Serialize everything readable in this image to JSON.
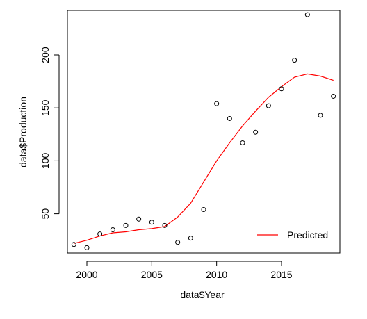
{
  "chart_data": {
    "type": "scatter",
    "title": "",
    "xlabel": "data$Year",
    "ylabel": "data$Production",
    "xlim": [
      1998.5,
      2019.5
    ],
    "ylim": [
      13,
      242
    ],
    "x_ticks": [
      2000,
      2005,
      2010,
      2015
    ],
    "y_ticks": [
      50,
      100,
      150,
      200
    ],
    "x_tick_labels": [
      "2000",
      "2005",
      "2010",
      "2015"
    ],
    "y_tick_labels": [
      "50",
      "100",
      "150",
      "200"
    ],
    "grid": false,
    "legend_position": "bottom-right",
    "series": [
      {
        "type": "scatter",
        "marker": "open-circle",
        "color": "#000000",
        "x": [
          1999,
          2000,
          2001,
          2002,
          2003,
          2004,
          2005,
          2006,
          2007,
          2008,
          2009,
          2010,
          2011,
          2012,
          2013,
          2014,
          2015,
          2016,
          2017,
          2018,
          2019
        ],
        "y": [
          21,
          18,
          31,
          35,
          39,
          45,
          42,
          39,
          23,
          27,
          54,
          154,
          140,
          117,
          127,
          152,
          168,
          195,
          238,
          143,
          161
        ]
      },
      {
        "name": "Predicted",
        "type": "line",
        "color": "#ff0000",
        "x": [
          1999,
          2000,
          2001,
          2002,
          2003,
          2004,
          2005,
          2006,
          2007,
          2008,
          2009,
          2010,
          2011,
          2012,
          2013,
          2014,
          2015,
          2016,
          2017,
          2018,
          2019
        ],
        "y": [
          22,
          25,
          29,
          32,
          33,
          35,
          36,
          38,
          47,
          60,
          80,
          100,
          117,
          133,
          147,
          160,
          170,
          179,
          182,
          180,
          176
        ]
      }
    ]
  }
}
